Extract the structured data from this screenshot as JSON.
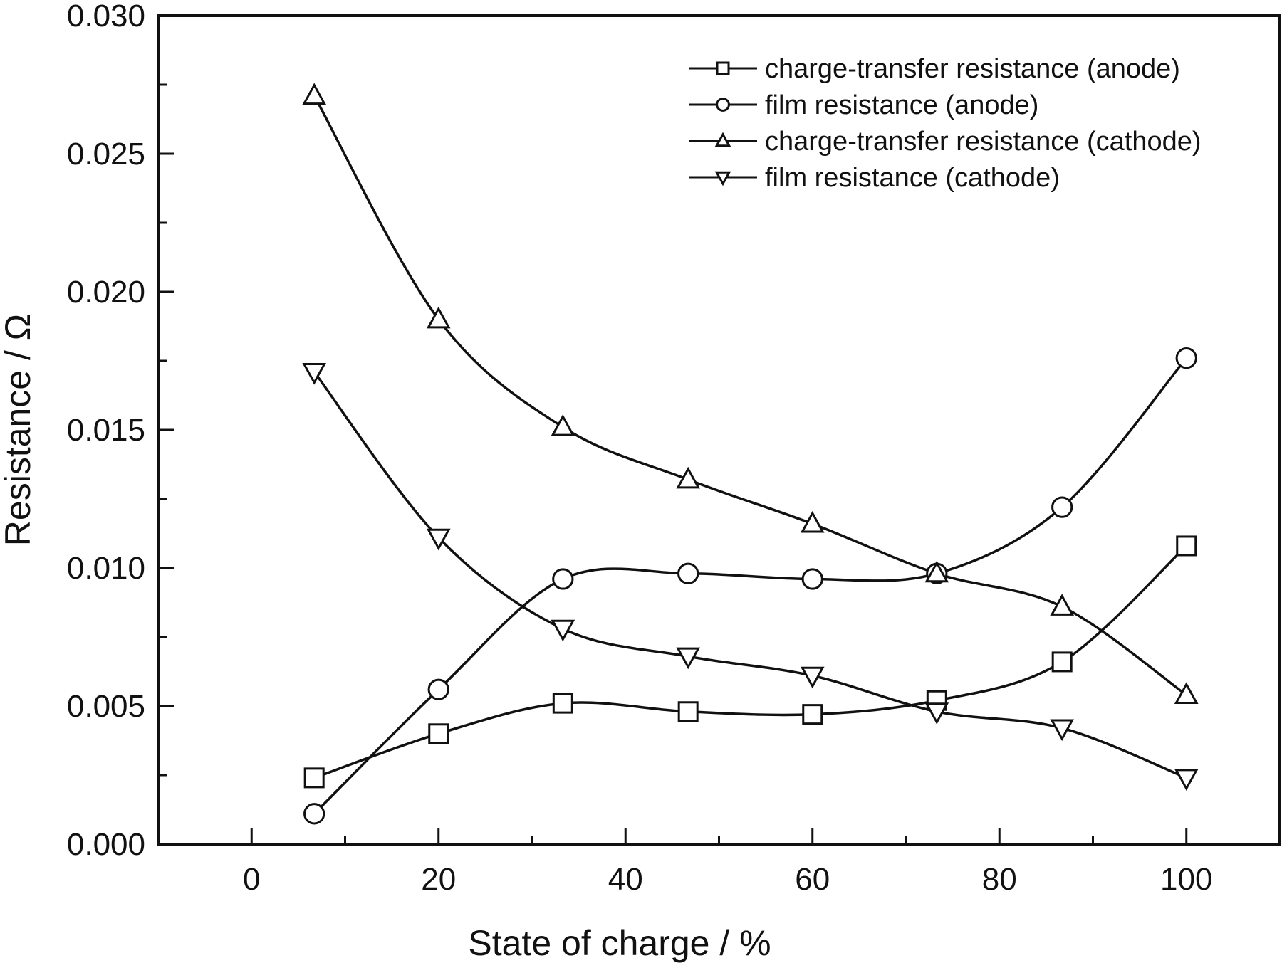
{
  "chart_data": {
    "type": "line",
    "title": "",
    "xlabel": "State of charge /  %",
    "ylabel": "Resistance / Ω",
    "xlim": [
      -10,
      110
    ],
    "ylim": [
      0.0,
      0.03
    ],
    "x_ticks": [
      0,
      20,
      40,
      60,
      80,
      100
    ],
    "x_tick_labels": [
      "0",
      "20",
      "40",
      "60",
      "80",
      "100"
    ],
    "y_ticks": [
      0.0,
      0.005,
      0.01,
      0.015,
      0.02,
      0.025,
      0.03
    ],
    "y_tick_labels": [
      "0.000",
      "0.005",
      "0.010",
      "0.015",
      "0.020",
      "0.025",
      "0.030"
    ],
    "grid": false,
    "legend_position": "top-right",
    "x": [
      6.7,
      20,
      33.3,
      46.7,
      60,
      73.3,
      86.7,
      100
    ],
    "series": [
      {
        "name": "charge-transfer resistance (anode)",
        "marker": "square",
        "values": [
          0.0024,
          0.004,
          0.0051,
          0.0048,
          0.0047,
          0.0052,
          0.0066,
          0.0108
        ]
      },
      {
        "name": "film resistance (anode)",
        "marker": "circle",
        "values": [
          0.0011,
          0.0056,
          0.0096,
          0.0098,
          0.0096,
          0.0098,
          0.0122,
          0.0176
        ]
      },
      {
        "name": "charge-transfer resistance (cathode)",
        "marker": "triangle-up",
        "values": [
          0.0271,
          0.019,
          0.0151,
          0.0132,
          0.0116,
          0.0098,
          0.0086,
          0.0054
        ]
      },
      {
        "name": "film resistance (cathode)",
        "marker": "triangle-down",
        "values": [
          0.0171,
          0.0111,
          0.0078,
          0.0068,
          0.0061,
          0.0048,
          0.0042,
          0.0024
        ]
      }
    ]
  }
}
